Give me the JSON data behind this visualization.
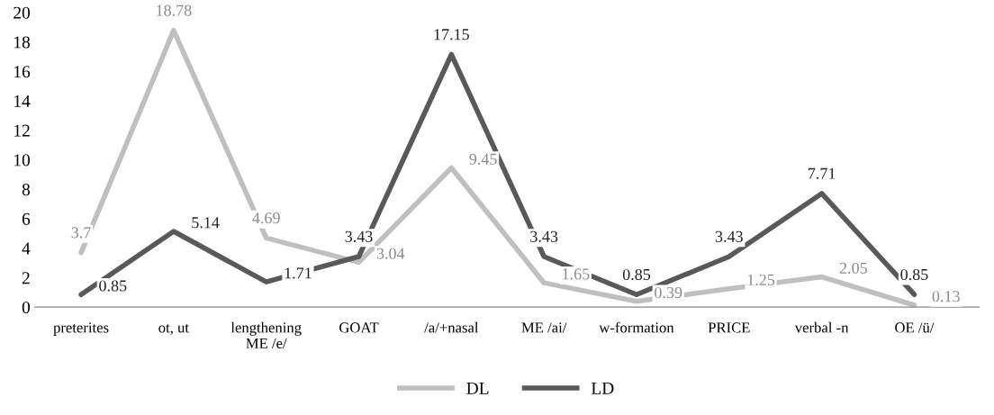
{
  "chart_data": {
    "type": "line",
    "categories": [
      "preterites",
      "ot, ut",
      "lengthening\nME /e/",
      "GOAT",
      "/a/+nasal",
      "ME /ai/",
      "w-formation",
      "PRICE",
      "verbal -n",
      "OE /ü/"
    ],
    "series": [
      {
        "name": "DL",
        "color": "#bfbfbf",
        "values": [
          3.7,
          18.78,
          4.69,
          3.04,
          9.45,
          1.65,
          0.39,
          1.25,
          2.05,
          0.13
        ]
      },
      {
        "name": "LD",
        "color": "#595959",
        "values": [
          0.85,
          5.14,
          1.71,
          3.43,
          17.15,
          3.43,
          0.85,
          3.43,
          7.71,
          0.85
        ]
      }
    ],
    "ylim": [
      0,
      20
    ],
    "yticks": [
      0,
      2,
      4,
      6,
      8,
      10,
      12,
      14,
      16,
      18,
      20
    ],
    "data_labels": true,
    "grid": false,
    "legend": "bottom",
    "marker": "none",
    "line_style": "solid"
  }
}
